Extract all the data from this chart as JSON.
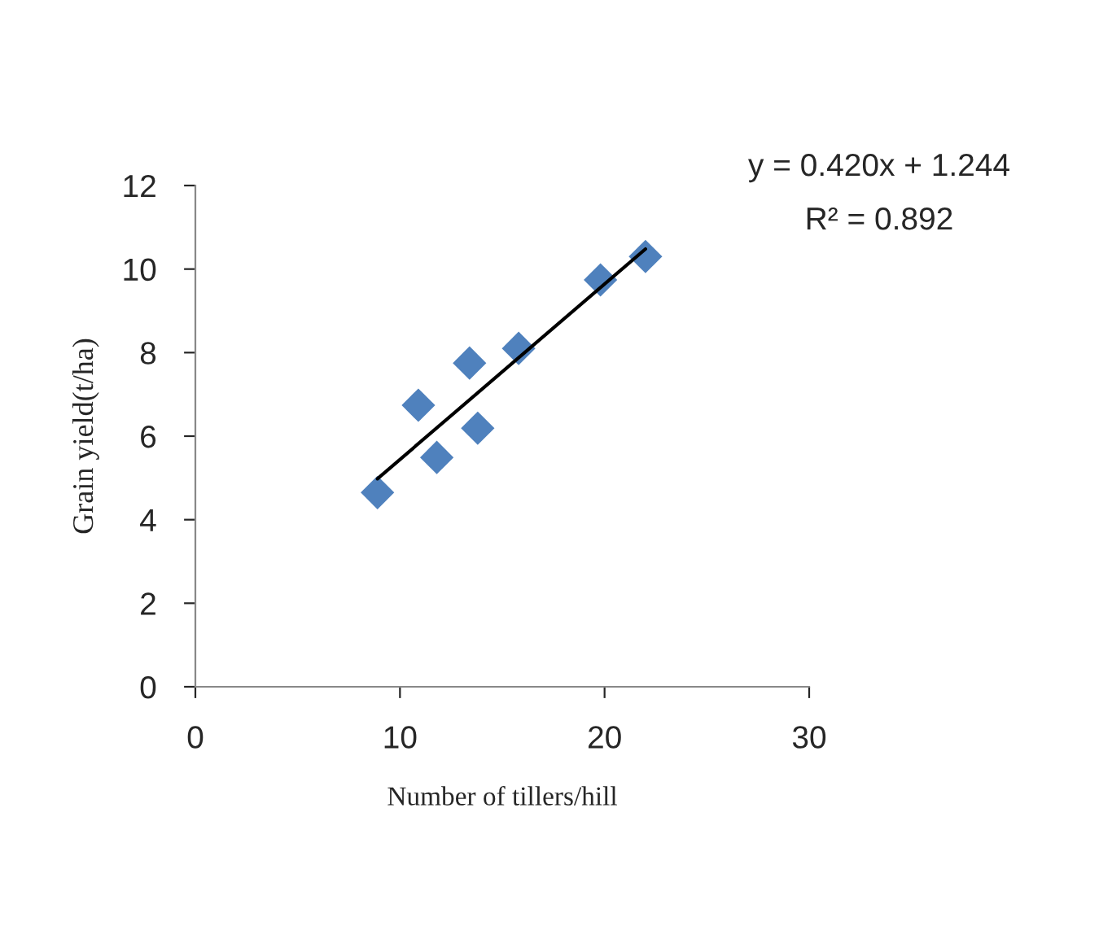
{
  "chart_data": {
    "type": "scatter",
    "xlabel": "Number of tillers/hill",
    "ylabel": "Grain yield(t/ha)",
    "xlim": [
      0,
      30
    ],
    "xticks": [
      0,
      10,
      20,
      30
    ],
    "ylim": [
      0,
      12
    ],
    "yticks": [
      0,
      2,
      4,
      6,
      8,
      10,
      12
    ],
    "grid": false,
    "legend": false,
    "marker": "diamond",
    "series": [
      {
        "color": "#4f81bd",
        "x": [
          8.9,
          10.9,
          11.8,
          13.4,
          13.8,
          15.8,
          19.8,
          22.0
        ],
        "values": [
          4.65,
          6.74,
          5.49,
          7.75,
          6.19,
          8.1,
          9.74,
          10.3
        ]
      },
      {
        "type": "line",
        "marker": "none",
        "color": "#000000",
        "line_style": "solid",
        "x": [
          8.9,
          22.0
        ],
        "values": [
          4.98,
          10.48
        ]
      }
    ],
    "annotations": [
      "y = 0.420x + 1.244",
      "R² = 0.892"
    ]
  }
}
